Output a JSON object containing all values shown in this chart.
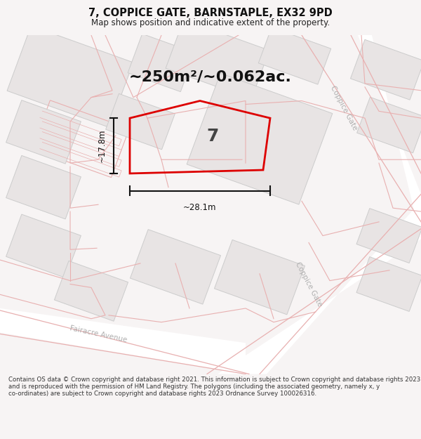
{
  "title": "7, COPPICE GATE, BARNSTAPLE, EX32 9PD",
  "subtitle": "Map shows position and indicative extent of the property.",
  "area_text": "~250m²/~0.062ac.",
  "width_label": "~28.1m",
  "height_label": "~17.8m",
  "property_label": "7",
  "footer": "Contains OS data © Crown copyright and database right 2021. This information is subject to Crown copyright and database rights 2023 and is reproduced with the permission of HM Land Registry. The polygons (including the associated geometry, namely x, y co-ordinates) are subject to Crown copyright and database rights 2023 Ordnance Survey 100026316.",
  "bg": "#f7f4f4",
  "map_bg": "#f7f4f4",
  "road_fill": "#ffffff",
  "building_fill": "#e8e4e4",
  "building_edge": "#cccccc",
  "property_color": "#dd0000",
  "pink_line": "#e8b0b0",
  "dim_color": "#111111",
  "street_color": "#b0b0b0",
  "footer_color": "#333333"
}
